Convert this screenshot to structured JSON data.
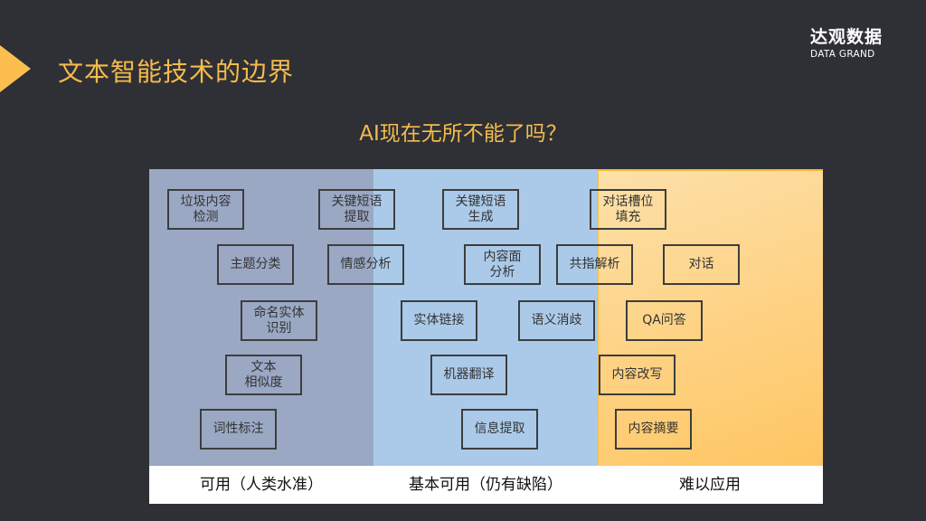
{
  "header": {
    "title": "文本智能技术的边界",
    "logo_cn": "达观数据",
    "logo_en": "DATA GRAND"
  },
  "subtitle": "AI现在无所不能了吗？",
  "columns": [
    {
      "label": "可用（人类水准）",
      "color": "#9aa8c4"
    },
    {
      "label": "基本可用（仍有缺陷）",
      "color": "#abcae9"
    },
    {
      "label": "难以应用",
      "color": "#fec662"
    }
  ],
  "tasks": [
    "垃圾内容\n检测",
    "关键短语\n提取",
    "关键短语\n生成",
    "对话槽位\n填充",
    "主题分类",
    "情感分析",
    "内容面\n分析",
    "共指解析",
    "对话",
    "命名实体\n识别",
    "实体链接",
    "语义消歧",
    "QA问答",
    "文本\n相似度",
    "机器翻译",
    "内容改写",
    "词性标注",
    "信息提取",
    "内容摘要"
  ]
}
